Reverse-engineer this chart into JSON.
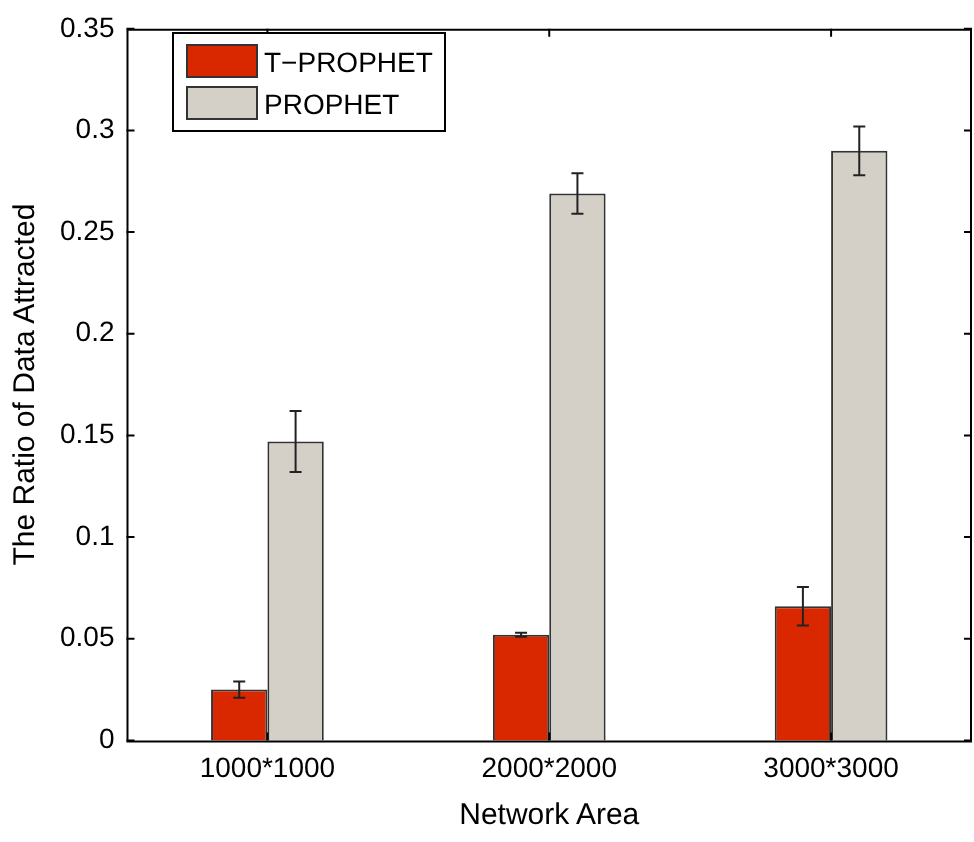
{
  "chart_data": {
    "type": "bar",
    "xlabel": "Network Area",
    "ylabel": "The Ratio of Data Attracted",
    "categories": [
      "1000*1000",
      "2000*2000",
      "3000*3000"
    ],
    "series": [
      {
        "name": "T−PROPHET",
        "color": "#d92800",
        "values": [
          0.025,
          0.052,
          0.066
        ],
        "errors": [
          0.004,
          0.001,
          0.0095
        ]
      },
      {
        "name": "PROPHET",
        "color": "#d4d0c8",
        "values": [
          0.147,
          0.269,
          0.29
        ],
        "errors": [
          0.015,
          0.01,
          0.012
        ]
      }
    ],
    "ylim": [
      0,
      0.35
    ],
    "yticks": [
      0,
      0.05,
      0.1,
      0.15,
      0.2,
      0.25,
      0.3,
      0.35
    ],
    "grid": false,
    "legend": "top left"
  }
}
